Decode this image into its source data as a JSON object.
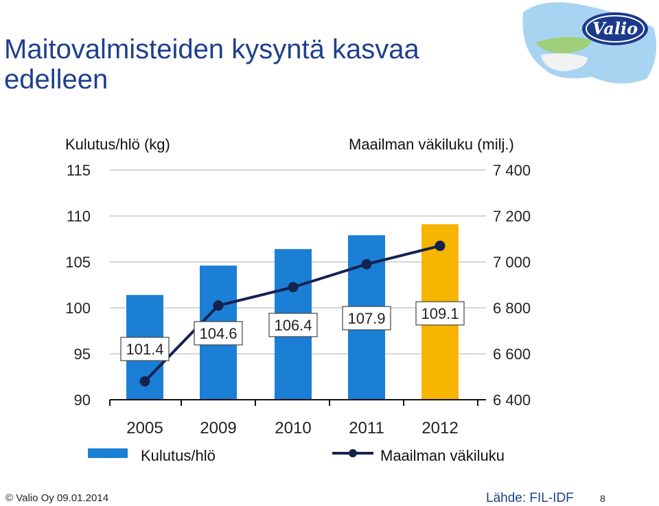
{
  "slide": {
    "title": "Maitovalmisteiden kysyntä kasvaa edelleen",
    "logo_text": "Valio",
    "footer_left": "© Valio Oy 09.01.2014",
    "footer_source": "Lähde: FIL-IDF",
    "page_number": "8"
  },
  "colors": {
    "bar": "#1b7fd6",
    "bar_highlight": "#f7b500",
    "line": "#14224e",
    "grid": "#c8c8c8",
    "title": "#1f3f8c"
  },
  "chart_data": {
    "type": "bar",
    "categories": [
      "2005",
      "2009",
      "2010",
      "2011",
      "2012"
    ],
    "left_axis_title": "Kulutus/hlö (kg)",
    "right_axis_title": "Maailman väkiluku (milj.)",
    "left_ylim": [
      90,
      115
    ],
    "left_ticks": [
      "90",
      "95",
      "100",
      "105",
      "110",
      "115"
    ],
    "right_ylim": [
      6400,
      7400
    ],
    "right_ticks": [
      "6 400",
      "6 600",
      "6 800",
      "7 000",
      "7 200",
      "7 400"
    ],
    "grid": true,
    "legend_position": "bottom",
    "highlight_category": "2012",
    "series": [
      {
        "name": "Kulutus/hlö",
        "kind": "bar",
        "axis": "left",
        "values": [
          101.4,
          104.6,
          106.4,
          107.9,
          109.1
        ],
        "labels": [
          "101.4",
          "104.6",
          "106.4",
          "107.9",
          "109.1"
        ]
      },
      {
        "name": "Maailman väkiluku",
        "kind": "line",
        "axis": "right",
        "values": [
          6480,
          6810,
          6890,
          6990,
          7070
        ]
      }
    ]
  }
}
